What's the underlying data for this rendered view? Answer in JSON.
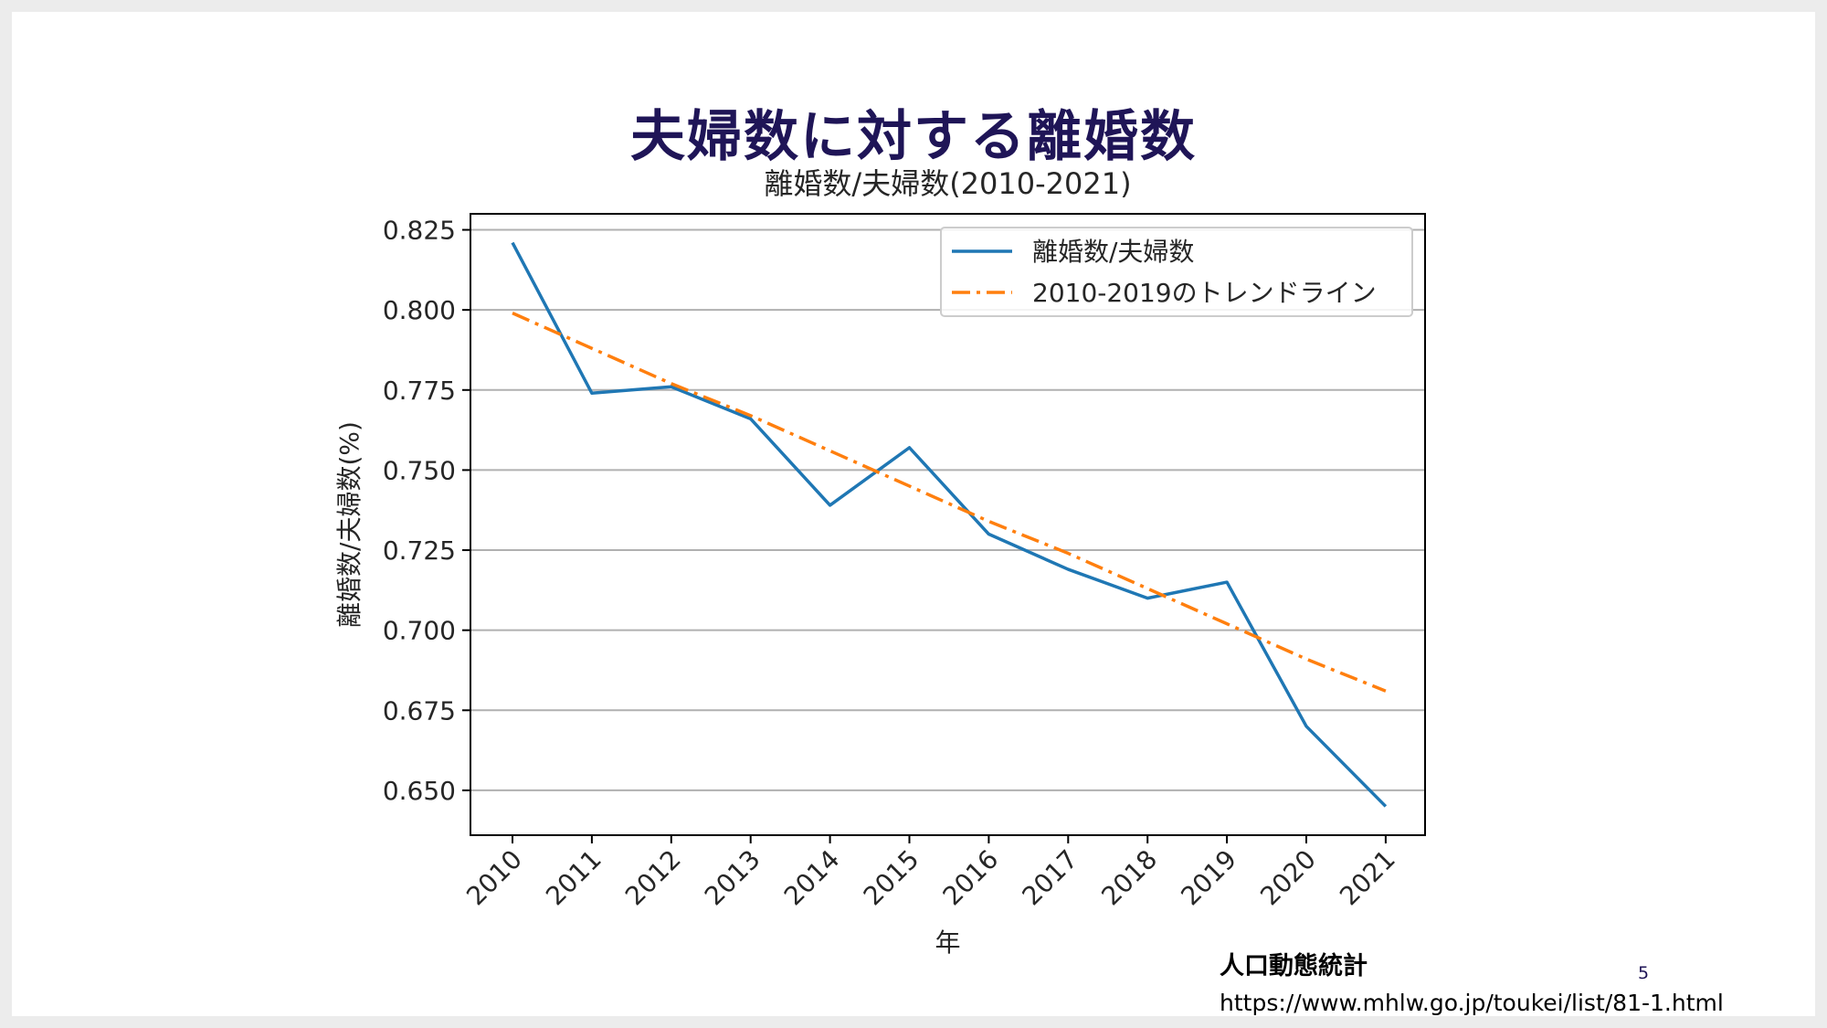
{
  "slide": {
    "title": "夫婦数に対する離婚数",
    "source_name": "人口動態統計",
    "source_url": "https://www.mhlw.go.jp/toukei/list/81-1.html",
    "page_number": "5"
  },
  "chart_data": {
    "type": "line",
    "title": "離婚数/夫婦数(2010-2021)",
    "xlabel": "年",
    "ylabel": "離婚数/夫婦数(%)",
    "x": [
      "2010",
      "2011",
      "2012",
      "2013",
      "2014",
      "2015",
      "2016",
      "2017",
      "2018",
      "2019",
      "2020",
      "2021"
    ],
    "ylim": [
      0.636,
      0.83
    ],
    "yticks": [
      "0.650",
      "0.675",
      "0.700",
      "0.725",
      "0.750",
      "0.775",
      "0.800",
      "0.825"
    ],
    "ytick_values": [
      0.65,
      0.675,
      0.7,
      0.725,
      0.75,
      0.775,
      0.8,
      0.825
    ],
    "grid": "horizontal",
    "legend_position": "top-right",
    "series": [
      {
        "name": "離婚数/夫婦数",
        "color": "#1f77b4",
        "style": "solid",
        "values": [
          0.821,
          0.774,
          0.776,
          0.766,
          0.739,
          0.757,
          0.73,
          0.719,
          0.71,
          0.715,
          0.67,
          0.645
        ]
      },
      {
        "name": "2010-2019のトレンドライン",
        "color": "#ff7f0e",
        "style": "dashdot",
        "values": [
          0.799,
          0.788,
          0.777,
          0.767,
          0.756,
          0.745,
          0.734,
          0.724,
          0.713,
          0.702,
          0.691,
          0.681
        ]
      }
    ]
  }
}
